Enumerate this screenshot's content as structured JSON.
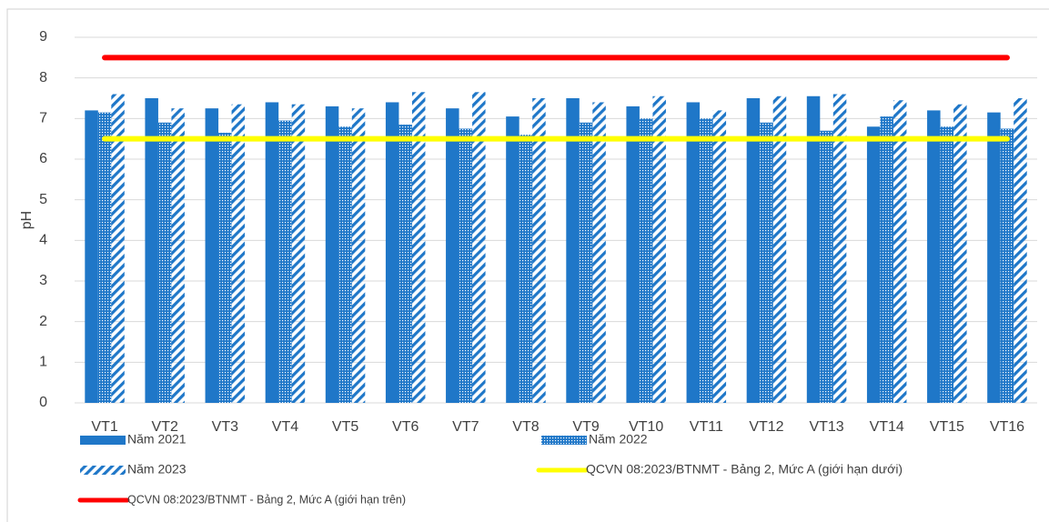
{
  "chart_data": {
    "type": "bar",
    "y_label": "pH",
    "categories": [
      "VT1",
      "VT2",
      "VT3",
      "VT4",
      "VT5",
      "VT6",
      "VT7",
      "VT8",
      "VT9",
      "VT10",
      "VT11",
      "VT12",
      "VT13",
      "VT14",
      "VT15",
      "VT16"
    ],
    "ylim": [
      0,
      9
    ],
    "yticks": [
      0,
      1,
      2,
      3,
      4,
      5,
      6,
      7,
      8,
      9
    ],
    "grid": true,
    "series": [
      {
        "name": "Năm 2021",
        "color": "#1f77c8",
        "pattern": "solid",
        "values": [
          7.2,
          7.5,
          7.25,
          7.4,
          7.3,
          7.4,
          7.25,
          7.05,
          7.5,
          7.3,
          7.4,
          7.5,
          7.55,
          6.8,
          7.2,
          7.15
        ]
      },
      {
        "name": "Năm 2022",
        "color": "#1f77c8",
        "pattern": "dots",
        "values": [
          7.15,
          6.9,
          6.65,
          6.95,
          6.8,
          6.85,
          6.75,
          6.6,
          6.9,
          7.0,
          7.0,
          6.9,
          6.7,
          7.05,
          6.8,
          6.75
        ]
      },
      {
        "name": "Năm 2023",
        "color": "#1f77c8",
        "pattern": "stripes",
        "values": [
          7.6,
          7.25,
          7.35,
          7.35,
          7.25,
          7.65,
          7.65,
          7.5,
          7.4,
          7.55,
          7.2,
          7.55,
          7.6,
          7.45,
          7.35,
          7.5
        ]
      },
      {
        "name": "QCVN 08:2023/BTNMT  - Bảng 2, Mức A (giới hạn dưới)",
        "color": "#ffff00",
        "type": "line",
        "values": [
          6.5,
          6.5,
          6.5,
          6.5,
          6.5,
          6.5,
          6.5,
          6.5,
          6.5,
          6.5,
          6.5,
          6.5,
          6.5,
          6.5,
          6.5,
          6.5
        ]
      },
      {
        "name": "QCVN 08:2023/BTNMT - Bảng 2, Mức A (giới hạn trên)",
        "color": "#ff0000",
        "type": "line",
        "values": [
          8.5,
          8.5,
          8.5,
          8.5,
          8.5,
          8.5,
          8.5,
          8.5,
          8.5,
          8.5,
          8.5,
          8.5,
          8.5,
          8.5,
          8.5,
          8.5
        ]
      }
    ]
  }
}
